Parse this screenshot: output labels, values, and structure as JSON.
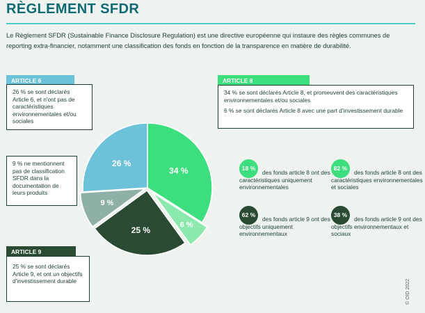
{
  "title": "RÈGLEMENT SFDR",
  "intro": "Le Règlement SFDR (Sustainable Finance Disclosure Regulation) est une directive européenne qui instaure des règles communes de reporting extra-financier, notamment une classification des fonds en fonction de la transparence en matière de durabilité.",
  "article6": {
    "tag": "ARTICLE 6",
    "text": "26 % se sont déclarés Article 6, et n'ont pas de caractéristiques environnementales et/ou sociales"
  },
  "article8": {
    "tag": "ARTICLE 8",
    "text1": "34 % se sont déclarés Article 8, et promeuvent des caractéristiques environnementales et/ou sociales",
    "text2": "6 % se sont déclarés Article 8 avec une part d'investissement durable"
  },
  "unclassified": {
    "text": "9 % ne mentionnent pas de classification SFDR dans la documentation de leurs produits"
  },
  "article9": {
    "tag": "ARTICLE 9",
    "text": "25 % se sont déclarés Article 9, et ont un objectifs d'investissement durable"
  },
  "pie": {
    "slices": [
      {
        "label": "34 %",
        "value": 34,
        "color": "#3dde7d"
      },
      {
        "label": "6 %",
        "value": 6,
        "color": "#8ce9ad"
      },
      {
        "label": "25 %",
        "value": 25,
        "color": "#2a4a33"
      },
      {
        "label": "9 %",
        "value": 9,
        "color": "#8fb0a6"
      },
      {
        "label": "26 %",
        "value": 26,
        "color": "#6cc2d8"
      }
    ]
  },
  "stats": [
    {
      "value": "18 %",
      "color": "#3dde7d",
      "text": "des fonds article 8 ont des caractéristiques uniquement environnementales"
    },
    {
      "value": "82 %",
      "color": "#3dde7d",
      "text": "des fonds article 8 ont des caractéristiques environnementales et sociales"
    },
    {
      "value": "62 %",
      "color": "#2a4a33",
      "text": "des fonds article 9 ont des objectifs uniquement environnementaux"
    },
    {
      "value": "38 %",
      "color": "#2a4a33",
      "text": "des fonds article 9 ont des objectifs environnementaux et sociaux"
    }
  ],
  "copyright": "© OID 2022"
}
